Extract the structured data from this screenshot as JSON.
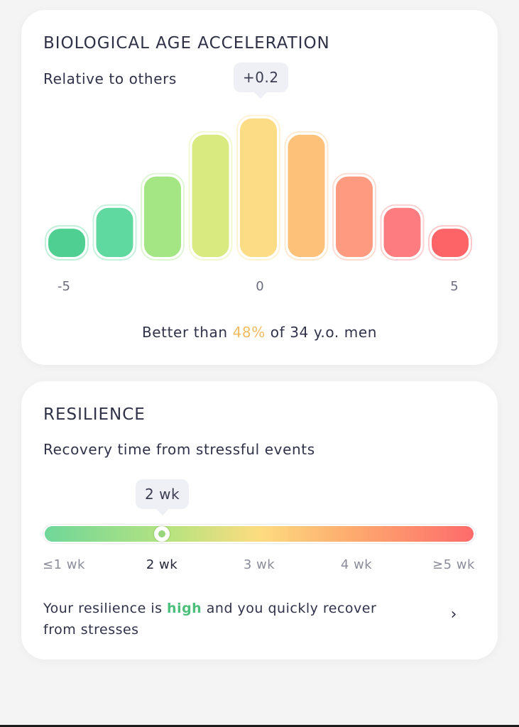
{
  "bio_age": {
    "title": "BIOLOGICAL AGE ACCELERATION",
    "subtitle": "Relative to others",
    "tooltip": "+0.2",
    "axis_labels": {
      "min": "-5",
      "mid": "0",
      "max": "5"
    },
    "summary_prefix": "Better than ",
    "summary_pct": "48%",
    "summary_suffix": " of 34 y.o. men",
    "colors": {
      "highlight": "#f2bb62"
    }
  },
  "chart_data": {
    "type": "bar",
    "categories": [
      "1",
      "2",
      "3",
      "4",
      "5",
      "6",
      "7",
      "8",
      "9"
    ],
    "values": [
      0.19,
      0.33,
      0.54,
      0.82,
      0.93,
      0.82,
      0.54,
      0.33,
      0.19
    ],
    "colors": [
      "#4fd092",
      "#5fd9a0",
      "#a4e584",
      "#d9eb80",
      "#fddc86",
      "#fdc17a",
      "#fd9a80",
      "#fd7c80",
      "#fd6468"
    ],
    "highlighted_index": 4,
    "xlim": [
      -5,
      5
    ],
    "ylim": [
      0,
      1
    ]
  },
  "resilience": {
    "title": "RESILIENCE",
    "subtitle": "Recovery time from stressful events",
    "tooltip": "2 wk",
    "ticks": [
      "≤1 wk",
      "2 wk",
      "3 wk",
      "4 wk",
      "≥5 wk"
    ],
    "selected_index": 1,
    "text_prefix": "Your resilience is ",
    "text_level": "high",
    "text_suffix": " and you quickly recover from stresses",
    "colors": {
      "level": "#4cc07a"
    }
  }
}
